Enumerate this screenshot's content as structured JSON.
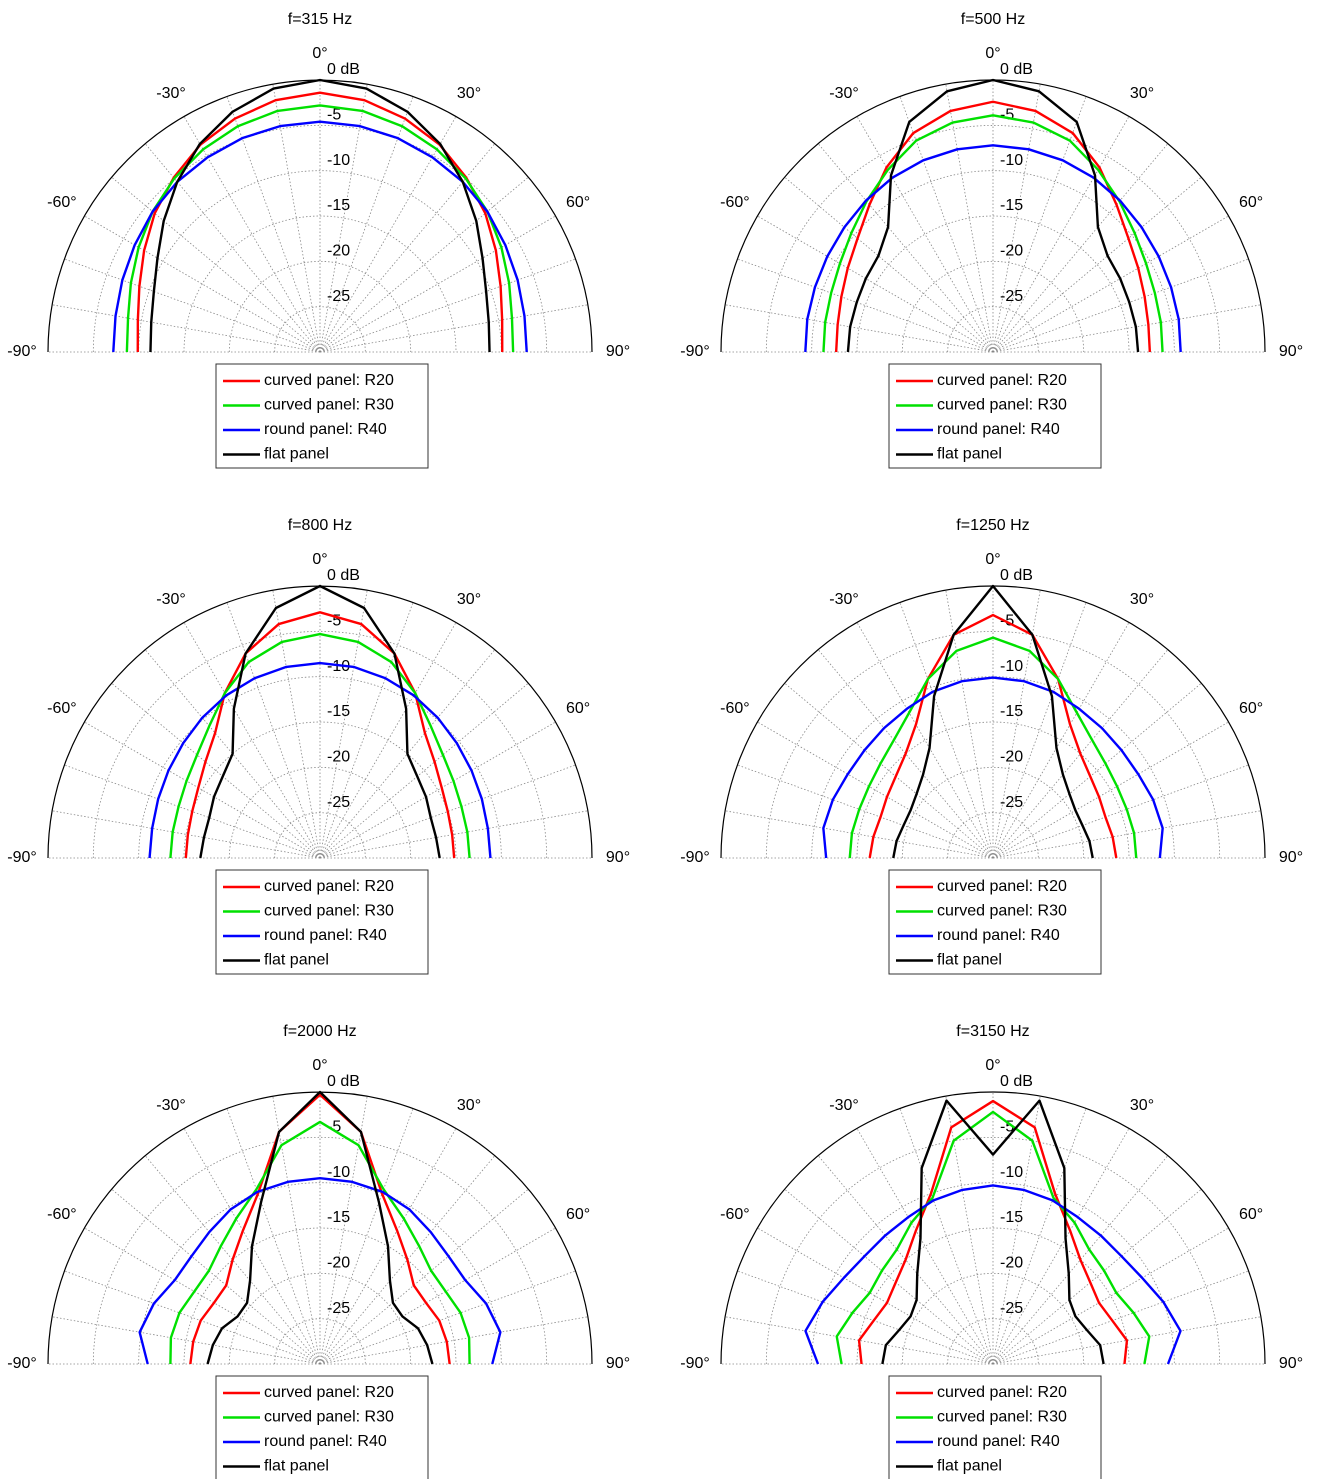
{
  "chart_data": [
    {
      "type": "polar",
      "title": "f=315 Hz",
      "x": [
        -90,
        -80,
        -70,
        -60,
        -50,
        -40,
        -30,
        -20,
        -10,
        0,
        10,
        20,
        30,
        40,
        50,
        60,
        70,
        80,
        90
      ],
      "rlim": [
        -30,
        0
      ],
      "rticks": [
        {
          "value": 0,
          "label": "0 dB"
        },
        -5,
        -10,
        -15,
        -20,
        -25
      ],
      "thetaticks": [
        {
          "value": -90,
          "label": "-90°"
        },
        {
          "value": -60,
          "label": "-60°"
        },
        {
          "value": -30,
          "label": "-30°"
        },
        {
          "value": 0,
          "label": "0°"
        },
        {
          "value": 30,
          "label": "30°"
        },
        {
          "value": 60,
          "label": "60°"
        },
        {
          "value": 90,
          "label": "90°"
        }
      ],
      "series": [
        {
          "name": "curved panel: R20",
          "color": "#ff0000",
          "values": [
            -9.9,
            -9.6,
            -8.8,
            -7.6,
            -6.2,
            -4.9,
            -3.6,
            -2.6,
            -1.8,
            -1.4,
            -1.8,
            -2.6,
            -3.6,
            -4.9,
            -6.2,
            -7.6,
            -8.8,
            -9.6,
            -9.9
          ]
        },
        {
          "name": "curved panel: R30",
          "color": "#00e000",
          "values": [
            -8.7,
            -8.5,
            -7.8,
            -6.9,
            -5.9,
            -5,
            -4.2,
            -3.5,
            -3,
            -2.8,
            -3,
            -3.5,
            -4.2,
            -5,
            -5.9,
            -6.9,
            -7.8,
            -8.5,
            -8.7
          ]
        },
        {
          "name": "round panel: R40",
          "color": "#0000ff",
          "values": [
            -7.2,
            -7.1,
            -6.8,
            -6.4,
            -5.9,
            -5.5,
            -5.2,
            -4.9,
            -4.7,
            -4.6,
            -4.7,
            -4.9,
            -5.2,
            -5.5,
            -5.9,
            -6.4,
            -6.8,
            -7.1,
            -7.2
          ]
        },
        {
          "name": "flat panel",
          "color": "#000000",
          "values": [
            -11.3,
            -11.1,
            -10.5,
            -9.3,
            -7.5,
            -5.5,
            -3.5,
            -1.8,
            -0.5,
            0,
            -0.5,
            -1.8,
            -3.5,
            -5.5,
            -7.5,
            -9.3,
            -10.5,
            -11.1,
            -11.3
          ]
        }
      ]
    },
    {
      "type": "polar",
      "title": "f=500 Hz",
      "x": [
        -90,
        -80,
        -70,
        -60,
        -50,
        -40,
        -30,
        -20,
        -10,
        0,
        10,
        20,
        30,
        40,
        50,
        60,
        70,
        80,
        90
      ],
      "rlim": [
        -30,
        0
      ],
      "rticks": [
        {
          "value": 0,
          "label": "0 dB"
        },
        -5,
        -10,
        -15,
        -20,
        -25
      ],
      "thetaticks": [
        {
          "value": -90,
          "label": "-90°"
        },
        {
          "value": -60,
          "label": "-60°"
        },
        {
          "value": -30,
          "label": "-30°"
        },
        {
          "value": 0,
          "label": "0°"
        },
        {
          "value": 30,
          "label": "30°"
        },
        {
          "value": 60,
          "label": "60°"
        },
        {
          "value": 90,
          "label": "90°"
        }
      ],
      "series": [
        {
          "name": "curved panel: R20",
          "color": "#ff0000",
          "values": [
            -12.7,
            -12.6,
            -12.2,
            -11.5,
            -10.5,
            -8.8,
            -6.5,
            -4.3,
            -3,
            -2.4,
            -3,
            -4.3,
            -6.5,
            -8.8,
            -10.5,
            -11.5,
            -12.2,
            -12.6,
            -12.7
          ]
        },
        {
          "name": "curved panel: R30",
          "color": "#00e000",
          "values": [
            -11.3,
            -11.2,
            -11,
            -10.5,
            -9.6,
            -8.3,
            -6.8,
            -5.2,
            -4.3,
            -3.9,
            -4.3,
            -5.2,
            -6.8,
            -8.3,
            -9.6,
            -10.5,
            -11,
            -11.2,
            -11.3
          ]
        },
        {
          "name": "round panel: R40",
          "color": "#0000ff",
          "values": [
            -9.3,
            -9.2,
            -9.1,
            -8.9,
            -8.6,
            -8.2,
            -7.8,
            -7.5,
            -7.3,
            -7.2,
            -7.3,
            -7.5,
            -7.8,
            -8.2,
            -8.6,
            -8.9,
            -9.1,
            -9.2,
            -9.3
          ]
        },
        {
          "name": "flat panel",
          "color": "#000000",
          "values": [
            -14,
            -14,
            -14,
            -13.8,
            -13.5,
            -12,
            -7.5,
            -3,
            -0.8,
            0,
            -0.8,
            -3,
            -7.5,
            -12,
            -13.5,
            -13.8,
            -14,
            -14,
            -14
          ]
        }
      ]
    },
    {
      "type": "polar",
      "title": "f=800 Hz",
      "x": [
        -90,
        -80,
        -70,
        -60,
        -50,
        -40,
        -30,
        -20,
        -10,
        0,
        10,
        20,
        30,
        40,
        50,
        60,
        70,
        80,
        90
      ],
      "rlim": [
        -30,
        0
      ],
      "rticks": [
        {
          "value": 0,
          "label": "0 dB"
        },
        -5,
        -10,
        -15,
        -20,
        -25
      ],
      "thetaticks": [
        {
          "value": -90,
          "label": "-90°"
        },
        {
          "value": -60,
          "label": "-60°"
        },
        {
          "value": -30,
          "label": "-30°"
        },
        {
          "value": 0,
          "label": "0°"
        },
        {
          "value": 30,
          "label": "30°"
        },
        {
          "value": 60,
          "label": "60°"
        },
        {
          "value": 90,
          "label": "90°"
        }
      ],
      "series": [
        {
          "name": "curved panel: R20",
          "color": "#ff0000",
          "values": [
            -15.2,
            -15.2,
            -15,
            -14.5,
            -13.5,
            -12,
            -9,
            -6,
            -3.8,
            -2.9,
            -3.8,
            -6,
            -9,
            -12,
            -13.5,
            -14.5,
            -15,
            -15.2,
            -15.2
          ]
        },
        {
          "name": "curved panel: R30",
          "color": "#00e000",
          "values": [
            -13.5,
            -13.5,
            -13.4,
            -13,
            -12.3,
            -11,
            -9,
            -7,
            -5.8,
            -5.3,
            -5.8,
            -7,
            -9,
            -11,
            -12.3,
            -13,
            -13.4,
            -13.5,
            -13.5
          ]
        },
        {
          "name": "round panel: R40",
          "color": "#0000ff",
          "values": [
            -11.2,
            -11.2,
            -11,
            -10.7,
            -10.3,
            -9.8,
            -9.3,
            -8.9,
            -8.6,
            -8.5,
            -8.6,
            -8.9,
            -9.3,
            -9.8,
            -10.3,
            -10.7,
            -11,
            -11.2,
            -11.2
          ]
        },
        {
          "name": "flat panel",
          "color": "#000000",
          "values": [
            -16.8,
            -17,
            -17,
            -16.5,
            -16,
            -15,
            -11,
            -6,
            -2,
            0,
            -2,
            -6,
            -11,
            -15,
            -16,
            -16.5,
            -17,
            -17,
            -16.8
          ]
        }
      ]
    },
    {
      "type": "polar",
      "title": "f=1250 Hz",
      "x": [
        -90,
        -80,
        -70,
        -60,
        -50,
        -40,
        -30,
        -20,
        -10,
        0,
        10,
        20,
        30,
        40,
        50,
        60,
        70,
        80,
        90
      ],
      "rlim": [
        -30,
        0
      ],
      "rticks": [
        {
          "value": 0,
          "label": "0 dB"
        },
        -5,
        -10,
        -15,
        -20,
        -25
      ],
      "thetaticks": [
        {
          "value": -90,
          "label": "-90°"
        },
        {
          "value": -60,
          "label": "-60°"
        },
        {
          "value": -30,
          "label": "-30°"
        },
        {
          "value": 0,
          "label": "0°"
        },
        {
          "value": 30,
          "label": "30°"
        },
        {
          "value": 60,
          "label": "60°"
        },
        {
          "value": 90,
          "label": "90°"
        }
      ],
      "series": [
        {
          "name": "curved panel: R20",
          "color": "#ff0000",
          "values": [
            -16.4,
            -16.6,
            -16.8,
            -16.5,
            -16,
            -15,
            -13,
            -9,
            -5,
            -3.2,
            -5,
            -9,
            -13,
            -15,
            -16,
            -16.5,
            -16.8,
            -16.6,
            -16.4
          ]
        },
        {
          "name": "curved panel: R30",
          "color": "#00e000",
          "values": [
            -14.2,
            -14.2,
            -14.3,
            -14.2,
            -13.8,
            -13,
            -11.5,
            -9,
            -6.8,
            -5.7,
            -6.8,
            -9,
            -11.5,
            -13,
            -13.8,
            -14.2,
            -14.3,
            -14.2,
            -14.2
          ]
        },
        {
          "name": "round panel: R40",
          "color": "#0000ff",
          "values": [
            -11.6,
            -11,
            -11.2,
            -11.5,
            -11.5,
            -11.3,
            -11,
            -10.5,
            -10.2,
            -10.1,
            -10.2,
            -10.5,
            -11,
            -11.3,
            -11.5,
            -11.5,
            -11.2,
            -11,
            -11.6
          ]
        },
        {
          "name": "flat panel",
          "color": "#000000",
          "values": [
            -19,
            -19.2,
            -19.5,
            -19.5,
            -19,
            -18,
            -16,
            -11,
            -5,
            0,
            -5,
            -11,
            -16,
            -18,
            -19,
            -19.5,
            -19.5,
            -19.2,
            -19
          ]
        }
      ]
    },
    {
      "type": "polar",
      "title": "f=2000 Hz",
      "x": [
        -90,
        -80,
        -70,
        -60,
        -50,
        -40,
        -30,
        -20,
        -10,
        0,
        10,
        20,
        30,
        40,
        50,
        60,
        70,
        80,
        90
      ],
      "rlim": [
        -30,
        0
      ],
      "rticks": [
        {
          "value": 0,
          "label": "0 dB"
        },
        -5,
        -10,
        -15,
        -20,
        -25
      ],
      "thetaticks": [
        {
          "value": -90,
          "label": "-90°"
        },
        {
          "value": -60,
          "label": "-60°"
        },
        {
          "value": -30,
          "label": "-30°"
        },
        {
          "value": 0,
          "label": "0°"
        },
        {
          "value": 30,
          "label": "30°"
        },
        {
          "value": 60,
          "label": "60°"
        },
        {
          "value": 90,
          "label": "90°"
        }
      ],
      "series": [
        {
          "name": "curved panel: R20",
          "color": "#ff0000",
          "values": [
            -15.7,
            -15.8,
            -16,
            -16.5,
            -16.5,
            -15,
            -13,
            -10,
            -4,
            -0.3,
            -4,
            -10,
            -13,
            -15,
            -16.5,
            -16.5,
            -16,
            -15.8,
            -15.7
          ]
        },
        {
          "name": "curved panel: R30",
          "color": "#00e000",
          "values": [
            -13.5,
            -13.3,
            -13.5,
            -14,
            -14,
            -13,
            -11.5,
            -9.5,
            -5.5,
            -3.3,
            -5.5,
            -9.5,
            -11.5,
            -13,
            -14,
            -14,
            -13.5,
            -13.3,
            -13.5
          ]
        },
        {
          "name": "round panel: R40",
          "color": "#0000ff",
          "values": [
            -11,
            -9.8,
            -10.5,
            -11.5,
            -11.5,
            -11,
            -10.3,
            -9.8,
            -9.6,
            -9.5,
            -9.6,
            -9.8,
            -10.3,
            -11,
            -11.5,
            -11.5,
            -10.5,
            -9.8,
            -11
          ]
        },
        {
          "name": "flat panel",
          "color": "#000000",
          "values": [
            -17.6,
            -18,
            -18.5,
            -19.5,
            -19.5,
            -18,
            -15,
            -11,
            -4,
            0,
            -4,
            -11,
            -15,
            -18,
            -19.5,
            -19.5,
            -18.5,
            -18,
            -17.6
          ]
        }
      ]
    },
    {
      "type": "polar",
      "title": "f=3150 Hz",
      "x": [
        -90,
        -80,
        -70,
        -60,
        -50,
        -40,
        -30,
        -20,
        -10,
        0,
        10,
        20,
        30,
        40,
        50,
        60,
        70,
        80,
        90
      ],
      "rlim": [
        -30,
        0
      ],
      "rticks": [
        {
          "value": 0,
          "label": "0 dB"
        },
        -5,
        -10,
        -15,
        -20,
        -25
      ],
      "thetaticks": [
        {
          "value": -90,
          "label": "-90°"
        },
        {
          "value": -60,
          "label": "-60°"
        },
        {
          "value": -30,
          "label": "-30°"
        },
        {
          "value": 0,
          "label": "0°"
        },
        {
          "value": 30,
          "label": "30°"
        },
        {
          "value": 60,
          "label": "60°"
        },
        {
          "value": 90,
          "label": "90°"
        }
      ],
      "series": [
        {
          "name": "curved panel: R20",
          "color": "#ff0000",
          "values": [
            -15.5,
            -15,
            -16,
            -16.5,
            -16,
            -15,
            -13,
            -10,
            -3.5,
            -1,
            -3.5,
            -10,
            -13,
            -15,
            -16,
            -16.5,
            -16,
            -15,
            -15.5
          ]
        },
        {
          "name": "curved panel: R30",
          "color": "#00e000",
          "values": [
            -13.3,
            -12.5,
            -13.5,
            -14.3,
            -14,
            -13.5,
            -12,
            -10.5,
            -5,
            -2.2,
            -5,
            -10.5,
            -12,
            -13.5,
            -14,
            -14.3,
            -13.5,
            -12.5,
            -13.3
          ]
        },
        {
          "name": "round panel: R40",
          "color": "#0000ff",
          "values": [
            -10.7,
            -9,
            -10,
            -11,
            -11.5,
            -11.5,
            -11.3,
            -10.8,
            -10.5,
            -10.3,
            -10.5,
            -10.8,
            -11.3,
            -11.5,
            -11.5,
            -11,
            -10,
            -9,
            -10.7
          ]
        },
        {
          "name": "flat panel",
          "color": "#000000",
          "values": [
            -17.8,
            -18,
            -19,
            -19.5,
            -19,
            -17,
            -14,
            -7,
            -0.5,
            -6.9,
            -0.5,
            -7,
            -14,
            -17,
            -19,
            -19.5,
            -19,
            -18,
            -17.8
          ]
        }
      ]
    }
  ]
}
